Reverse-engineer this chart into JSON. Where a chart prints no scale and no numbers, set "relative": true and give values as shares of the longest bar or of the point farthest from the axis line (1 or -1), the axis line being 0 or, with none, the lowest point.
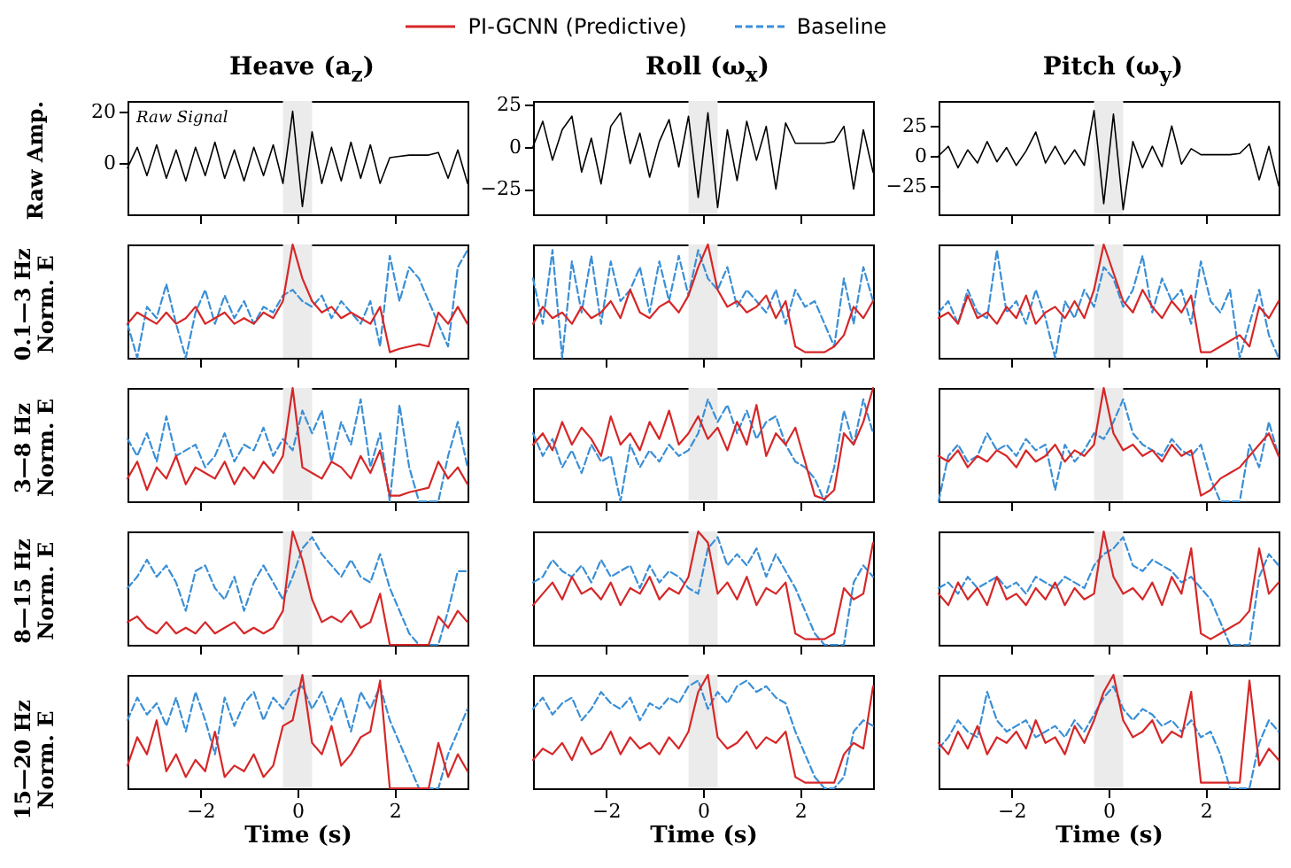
{
  "chart_data": [
    {
      "type": "line",
      "title": "Heave (a$_{z}$)",
      "ylabel": "Raw Amp.",
      "annotations": [
        "Raw Signal"
      ],
      "x": [
        -3.5,
        -3.3,
        -3.1,
        -2.9,
        -2.7,
        -2.5,
        -2.3,
        -2.1,
        -1.9,
        -1.7,
        -1.5,
        -1.3,
        -1.1,
        -0.9,
        -0.7,
        -0.5,
        -0.3,
        -0.1,
        0.1,
        0.3,
        0.5,
        0.7,
        0.9,
        1.1,
        1.3,
        1.5,
        1.7,
        1.9,
        2.1,
        2.3,
        2.5,
        2.7,
        2.9,
        3.1,
        3.3,
        3.5
      ],
      "xlim": [
        -3.5,
        3.5
      ],
      "xticks": [
        -2,
        0,
        2
      ],
      "ylim": [
        -20,
        24
      ],
      "yticks": [
        0,
        20
      ],
      "tick_labels": "y",
      "bands": [
        {
          "axis": "x",
          "from": -0.3,
          "to": 0.3,
          "color": "#ebebeb"
        }
      ],
      "series": [
        {
          "color": "#000000",
          "values": [
            -2,
            6,
            -5,
            7,
            -6,
            5,
            -7,
            6,
            -5,
            8,
            -6,
            5,
            -7,
            6,
            -5,
            7,
            -8,
            20,
            -17,
            12,
            -8,
            6,
            -7,
            8,
            -6,
            7,
            -8,
            2,
            2.5,
            3,
            3,
            3,
            4,
            -6,
            5,
            -8
          ]
        }
      ]
    },
    {
      "type": "line",
      "title": "Roll (ω$_{x}$)",
      "x": [
        -3.5,
        -3.3,
        -3.1,
        -2.9,
        -2.7,
        -2.5,
        -2.3,
        -2.1,
        -1.9,
        -1.7,
        -1.5,
        -1.3,
        -1.1,
        -0.9,
        -0.7,
        -0.5,
        -0.3,
        -0.1,
        0.1,
        0.3,
        0.5,
        0.7,
        0.9,
        1.1,
        1.3,
        1.5,
        1.7,
        1.9,
        2.1,
        2.3,
        2.5,
        2.7,
        2.9,
        3.1,
        3.3,
        3.5
      ],
      "xlim": [
        -3.5,
        3.5
      ],
      "xticks": [
        -2,
        0,
        2
      ],
      "ylim": [
        -40,
        27
      ],
      "yticks": [
        -25,
        0,
        25
      ],
      "tick_labels": "y",
      "bands": [
        {
          "axis": "x",
          "from": -0.3,
          "to": 0.3,
          "color": "#ebebeb"
        }
      ],
      "series": [
        {
          "color": "#000000",
          "values": [
            0,
            15,
            -8,
            10,
            18,
            -15,
            5,
            -22,
            12,
            20,
            -10,
            8,
            -18,
            3,
            16,
            -12,
            18,
            -30,
            20,
            -36,
            10,
            -20,
            15,
            -8,
            12,
            -25,
            14,
            2,
            2,
            2,
            2,
            3,
            12,
            -25,
            10,
            -15
          ]
        }
      ]
    },
    {
      "type": "line",
      "title": "Pitch (ω$_{y}$)",
      "x": [
        -3.5,
        -3.3,
        -3.1,
        -2.9,
        -2.7,
        -2.5,
        -2.3,
        -2.1,
        -1.9,
        -1.7,
        -1.5,
        -1.3,
        -1.1,
        -0.9,
        -0.7,
        -0.5,
        -0.3,
        -0.1,
        0.1,
        0.3,
        0.5,
        0.7,
        0.9,
        1.1,
        1.3,
        1.5,
        1.7,
        1.9,
        2.1,
        2.3,
        2.5,
        2.7,
        2.9,
        3.1,
        3.3,
        3.5
      ],
      "xlim": [
        -3.5,
        3.5
      ],
      "xticks": [
        -2,
        0,
        2
      ],
      "ylim": [
        -49,
        46
      ],
      "yticks": [
        -25,
        0,
        25
      ],
      "tick_labels": "y",
      "bands": [
        {
          "axis": "x",
          "from": -0.3,
          "to": 0.3,
          "color": "#ebebeb"
        }
      ],
      "series": [
        {
          "color": "#000000",
          "values": [
            0,
            8,
            -10,
            5,
            -6,
            12,
            -5,
            7,
            -8,
            4,
            20,
            -6,
            8,
            -7,
            5,
            -8,
            38,
            -40,
            35,
            -45,
            12,
            -10,
            8,
            -9,
            25,
            -7,
            6,
            1,
            1,
            1,
            1,
            2,
            10,
            -20,
            8,
            -25
          ]
        }
      ]
    },
    {
      "type": "line",
      "ylabel": "0.1—3 Hz\nNorm. E",
      "relative": true,
      "legend": "top",
      "x": [
        -3.5,
        -3.3,
        -3.1,
        -2.9,
        -2.7,
        -2.5,
        -2.3,
        -2.1,
        -1.9,
        -1.7,
        -1.5,
        -1.3,
        -1.1,
        -0.9,
        -0.7,
        -0.5,
        -0.3,
        -0.1,
        0.1,
        0.3,
        0.5,
        0.7,
        0.9,
        1.1,
        1.3,
        1.5,
        1.7,
        1.9,
        2.1,
        2.3,
        2.5,
        2.7,
        2.9,
        3.1,
        3.3,
        3.5
      ],
      "xlim": [
        -3.5,
        3.5
      ],
      "xticks": [
        -2,
        0,
        2
      ],
      "tick_labels": false,
      "bands": [
        {
          "axis": "x",
          "from": -0.3,
          "to": 0.3,
          "color": "#ebebeb"
        }
      ],
      "series": [
        {
          "name": "PI-GCNN (Predictive)",
          "color": "#d62728",
          "values": [
            0.3,
            0.4,
            0.35,
            0.3,
            0.4,
            0.3,
            0.35,
            0.45,
            0.3,
            0.35,
            0.4,
            0.3,
            0.35,
            0.3,
            0.4,
            0.35,
            0.5,
            1.0,
            0.7,
            0.5,
            0.4,
            0.45,
            0.35,
            0.4,
            0.35,
            0.3,
            0.45,
            0.05,
            0.08,
            0.1,
            0.12,
            0.1,
            0.4,
            0.3,
            0.45,
            0.3
          ]
        },
        {
          "name": "Baseline",
          "color": "#3a8fd6",
          "line_style": "dashed",
          "values": [
            0.3,
            0.0,
            0.45,
            0.35,
            0.65,
            0.3,
            0.0,
            0.4,
            0.6,
            0.3,
            0.55,
            0.35,
            0.5,
            0.3,
            0.45,
            0.4,
            0.55,
            0.6,
            0.5,
            0.45,
            0.55,
            0.35,
            0.5,
            0.4,
            0.3,
            0.5,
            0.1,
            0.9,
            0.5,
            0.8,
            0.7,
            0.5,
            0.3,
            0.1,
            0.8,
            0.95
          ]
        }
      ]
    },
    {
      "type": "line",
      "relative": true,
      "x": [
        -3.5,
        -3.3,
        -3.1,
        -2.9,
        -2.7,
        -2.5,
        -2.3,
        -2.1,
        -1.9,
        -1.7,
        -1.5,
        -1.3,
        -1.1,
        -0.9,
        -0.7,
        -0.5,
        -0.3,
        -0.1,
        0.1,
        0.3,
        0.5,
        0.7,
        0.9,
        1.1,
        1.3,
        1.5,
        1.7,
        1.9,
        2.1,
        2.3,
        2.5,
        2.7,
        2.9,
        3.1,
        3.3,
        3.5
      ],
      "xlim": [
        -3.5,
        3.5
      ],
      "xticks": [
        -2,
        0,
        2
      ],
      "tick_labels": false,
      "bands": [
        {
          "axis": "x",
          "from": -0.3,
          "to": 0.3,
          "color": "#ebebeb"
        }
      ],
      "series": [
        {
          "color": "#d62728",
          "values": [
            0.3,
            0.45,
            0.35,
            0.4,
            0.3,
            0.45,
            0.35,
            0.4,
            0.5,
            0.35,
            0.6,
            0.4,
            0.35,
            0.45,
            0.5,
            0.4,
            0.55,
            0.8,
            1.0,
            0.6,
            0.45,
            0.5,
            0.4,
            0.45,
            0.55,
            0.35,
            0.5,
            0.1,
            0.05,
            0.05,
            0.05,
            0.1,
            0.2,
            0.45,
            0.35,
            0.5
          ]
        },
        {
          "color": "#3a8fd6",
          "line_style": "dashed",
          "values": [
            0.7,
            0.3,
            0.95,
            0.0,
            0.85,
            0.4,
            0.9,
            0.3,
            0.85,
            0.5,
            0.6,
            0.8,
            0.4,
            0.85,
            0.5,
            0.9,
            0.55,
            0.95,
            0.7,
            0.6,
            0.8,
            0.45,
            0.6,
            0.5,
            0.4,
            0.6,
            0.3,
            0.6,
            0.45,
            0.5,
            0.3,
            0.1,
            0.7,
            0.3,
            0.8,
            0.5
          ]
        }
      ]
    },
    {
      "type": "line",
      "relative": true,
      "x": [
        -3.5,
        -3.3,
        -3.1,
        -2.9,
        -2.7,
        -2.5,
        -2.3,
        -2.1,
        -1.9,
        -1.7,
        -1.5,
        -1.3,
        -1.1,
        -0.9,
        -0.7,
        -0.5,
        -0.3,
        -0.1,
        0.1,
        0.3,
        0.5,
        0.7,
        0.9,
        1.1,
        1.3,
        1.5,
        1.7,
        1.9,
        2.1,
        2.3,
        2.5,
        2.7,
        2.9,
        3.1,
        3.3,
        3.5
      ],
      "xlim": [
        -3.5,
        3.5
      ],
      "xticks": [
        -2,
        0,
        2
      ],
      "tick_labels": false,
      "bands": [
        {
          "axis": "x",
          "from": -0.3,
          "to": 0.3,
          "color": "#ebebeb"
        }
      ],
      "series": [
        {
          "color": "#d62728",
          "values": [
            0.35,
            0.4,
            0.3,
            0.55,
            0.35,
            0.4,
            0.3,
            0.45,
            0.35,
            0.55,
            0.3,
            0.4,
            0.45,
            0.35,
            0.5,
            0.35,
            0.6,
            1.0,
            0.75,
            0.5,
            0.4,
            0.6,
            0.45,
            0.35,
            0.5,
            0.4,
            0.55,
            0.05,
            0.05,
            0.1,
            0.15,
            0.2,
            0.1,
            0.45,
            0.35,
            0.5
          ]
        },
        {
          "color": "#3a8fd6",
          "line_style": "dashed",
          "values": [
            0.4,
            0.5,
            0.3,
            0.6,
            0.4,
            0.35,
            0.95,
            0.4,
            0.5,
            0.3,
            0.6,
            0.35,
            0.0,
            0.5,
            0.35,
            0.6,
            0.45,
            0.8,
            0.7,
            0.45,
            0.6,
            0.9,
            0.4,
            0.7,
            0.5,
            0.6,
            0.3,
            0.85,
            0.5,
            0.4,
            0.6,
            0.0,
            0.3,
            0.6,
            0.2,
            0.0
          ]
        }
      ]
    },
    {
      "type": "line",
      "ylabel": "3—8 Hz\nNorm. E",
      "relative": true,
      "x": [
        -3.5,
        -3.3,
        -3.1,
        -2.9,
        -2.7,
        -2.5,
        -2.3,
        -2.1,
        -1.9,
        -1.7,
        -1.5,
        -1.3,
        -1.1,
        -0.9,
        -0.7,
        -0.5,
        -0.3,
        -0.1,
        0.1,
        0.3,
        0.5,
        0.7,
        0.9,
        1.1,
        1.3,
        1.5,
        1.7,
        1.9,
        2.1,
        2.3,
        2.5,
        2.7,
        2.9,
        3.1,
        3.3,
        3.5
      ],
      "xlim": [
        -3.5,
        3.5
      ],
      "xticks": [
        -2,
        0,
        2
      ],
      "tick_labels": false,
      "bands": [
        {
          "axis": "x",
          "from": -0.3,
          "to": 0.3,
          "color": "#ebebeb"
        }
      ],
      "series": [
        {
          "color": "#d62728",
          "values": [
            0.2,
            0.35,
            0.1,
            0.3,
            0.2,
            0.4,
            0.15,
            0.3,
            0.25,
            0.2,
            0.35,
            0.15,
            0.3,
            0.2,
            0.35,
            0.25,
            0.4,
            1.0,
            0.3,
            0.25,
            0.2,
            0.35,
            0.3,
            0.2,
            0.4,
            0.25,
            0.45,
            0.05,
            0.05,
            0.08,
            0.1,
            0.12,
            0.35,
            0.2,
            0.3,
            0.15
          ]
        },
        {
          "color": "#3a8fd6",
          "line_style": "dashed",
          "values": [
            0.55,
            0.4,
            0.6,
            0.35,
            0.75,
            0.4,
            0.45,
            0.5,
            0.3,
            0.4,
            0.6,
            0.35,
            0.5,
            0.45,
            0.65,
            0.4,
            0.55,
            0.45,
            0.8,
            0.6,
            0.8,
            0.35,
            0.7,
            0.5,
            0.9,
            0.3,
            0.6,
            0.0,
            0.85,
            0.3,
            0.0,
            0.0,
            0.0,
            0.4,
            0.7,
            0.3
          ]
        }
      ]
    },
    {
      "type": "line",
      "relative": true,
      "x": [
        -3.5,
        -3.3,
        -3.1,
        -2.9,
        -2.7,
        -2.5,
        -2.3,
        -2.1,
        -1.9,
        -1.7,
        -1.5,
        -1.3,
        -1.1,
        -0.9,
        -0.7,
        -0.5,
        -0.3,
        -0.1,
        0.1,
        0.3,
        0.5,
        0.7,
        0.9,
        1.1,
        1.3,
        1.5,
        1.7,
        1.9,
        2.1,
        2.3,
        2.5,
        2.7,
        2.9,
        3.1,
        3.3,
        3.5
      ],
      "xlim": [
        -3.5,
        3.5
      ],
      "xticks": [
        -2,
        0,
        2
      ],
      "tick_labels": false,
      "bands": [
        {
          "axis": "x",
          "from": -0.3,
          "to": 0.3,
          "color": "#ebebeb"
        }
      ],
      "series": [
        {
          "color": "#d62728",
          "values": [
            0.5,
            0.6,
            0.45,
            0.7,
            0.5,
            0.65,
            0.55,
            0.4,
            0.75,
            0.5,
            0.6,
            0.45,
            0.7,
            0.55,
            0.8,
            0.5,
            0.6,
            0.75,
            0.55,
            0.65,
            0.45,
            0.7,
            0.5,
            0.85,
            0.4,
            0.6,
            0.5,
            0.65,
            0.35,
            0.05,
            0.02,
            0.1,
            0.6,
            0.5,
            0.7,
            1.0
          ]
        },
        {
          "color": "#3a8fd6",
          "line_style": "dashed",
          "values": [
            0.6,
            0.4,
            0.55,
            0.3,
            0.45,
            0.25,
            0.5,
            0.35,
            0.4,
            0.0,
            0.5,
            0.3,
            0.45,
            0.35,
            0.5,
            0.4,
            0.45,
            0.6,
            0.9,
            0.7,
            0.85,
            0.6,
            0.8,
            0.55,
            0.7,
            0.75,
            0.5,
            0.35,
            0.3,
            0.2,
            0.0,
            0.3,
            0.8,
            0.5,
            0.9,
            0.6
          ]
        }
      ]
    },
    {
      "type": "line",
      "relative": true,
      "x": [
        -3.5,
        -3.3,
        -3.1,
        -2.9,
        -2.7,
        -2.5,
        -2.3,
        -2.1,
        -1.9,
        -1.7,
        -1.5,
        -1.3,
        -1.1,
        -0.9,
        -0.7,
        -0.5,
        -0.3,
        -0.1,
        0.1,
        0.3,
        0.5,
        0.7,
        0.9,
        1.1,
        1.3,
        1.5,
        1.7,
        1.9,
        2.1,
        2.3,
        2.5,
        2.7,
        2.9,
        3.1,
        3.3,
        3.5
      ],
      "xlim": [
        -3.5,
        3.5
      ],
      "xticks": [
        -2,
        0,
        2
      ],
      "tick_labels": false,
      "bands": [
        {
          "axis": "x",
          "from": -0.3,
          "to": 0.3,
          "color": "#ebebeb"
        }
      ],
      "series": [
        {
          "color": "#d62728",
          "values": [
            0.4,
            0.35,
            0.45,
            0.3,
            0.4,
            0.35,
            0.45,
            0.4,
            0.3,
            0.45,
            0.35,
            0.4,
            0.5,
            0.35,
            0.45,
            0.4,
            0.5,
            1.0,
            0.6,
            0.45,
            0.5,
            0.4,
            0.45,
            0.35,
            0.5,
            0.4,
            0.45,
            0.05,
            0.1,
            0.2,
            0.25,
            0.3,
            0.4,
            0.5,
            0.6,
            0.4
          ]
        },
        {
          "color": "#3a8fd6",
          "line_style": "dashed",
          "values": [
            0.0,
            0.4,
            0.5,
            0.35,
            0.4,
            0.6,
            0.45,
            0.5,
            0.4,
            0.55,
            0.45,
            0.5,
            0.1,
            0.5,
            0.35,
            0.45,
            0.6,
            0.55,
            0.7,
            0.9,
            0.6,
            0.5,
            0.45,
            0.4,
            0.55,
            0.45,
            0.4,
            0.5,
            0.2,
            0.0,
            0.0,
            0.0,
            0.5,
            0.3,
            0.7,
            0.4
          ]
        }
      ]
    },
    {
      "type": "line",
      "ylabel": "8—15 Hz\nNorm. E",
      "relative": true,
      "x": [
        -3.5,
        -3.3,
        -3.1,
        -2.9,
        -2.7,
        -2.5,
        -2.3,
        -2.1,
        -1.9,
        -1.7,
        -1.5,
        -1.3,
        -1.1,
        -0.9,
        -0.7,
        -0.5,
        -0.3,
        -0.1,
        0.1,
        0.3,
        0.5,
        0.7,
        0.9,
        1.1,
        1.3,
        1.5,
        1.7,
        1.9,
        2.1,
        2.3,
        2.5,
        2.7,
        2.9,
        3.1,
        3.3,
        3.5
      ],
      "xlim": [
        -3.5,
        3.5
      ],
      "xticks": [
        -2,
        0,
        2
      ],
      "tick_labels": false,
      "bands": [
        {
          "axis": "x",
          "from": -0.3,
          "to": 0.3,
          "color": "#ebebeb"
        }
      ],
      "series": [
        {
          "color": "#d62728",
          "values": [
            0.2,
            0.25,
            0.15,
            0.1,
            0.2,
            0.1,
            0.15,
            0.1,
            0.2,
            0.1,
            0.15,
            0.2,
            0.1,
            0.15,
            0.1,
            0.15,
            0.3,
            1.0,
            0.75,
            0.4,
            0.2,
            0.25,
            0.2,
            0.3,
            0.15,
            0.2,
            0.45,
            0.0,
            0.0,
            0.0,
            0.0,
            0.0,
            0.25,
            0.15,
            0.3,
            0.2
          ]
        },
        {
          "color": "#3a8fd6",
          "line_style": "dashed",
          "values": [
            0.5,
            0.6,
            0.75,
            0.6,
            0.7,
            0.55,
            0.3,
            0.65,
            0.7,
            0.5,
            0.4,
            0.6,
            0.3,
            0.55,
            0.7,
            0.55,
            0.4,
            0.6,
            0.85,
            0.95,
            0.8,
            0.7,
            0.6,
            0.75,
            0.6,
            0.55,
            0.8,
            0.5,
            0.3,
            0.1,
            0.0,
            0.0,
            0.0,
            0.3,
            0.65,
            0.65
          ]
        }
      ]
    },
    {
      "type": "line",
      "relative": true,
      "x": [
        -3.5,
        -3.3,
        -3.1,
        -2.9,
        -2.7,
        -2.5,
        -2.3,
        -2.1,
        -1.9,
        -1.7,
        -1.5,
        -1.3,
        -1.1,
        -0.9,
        -0.7,
        -0.5,
        -0.3,
        -0.1,
        0.1,
        0.3,
        0.5,
        0.7,
        0.9,
        1.1,
        1.3,
        1.5,
        1.7,
        1.9,
        2.1,
        2.3,
        2.5,
        2.7,
        2.9,
        3.1,
        3.3,
        3.5
      ],
      "xlim": [
        -3.5,
        3.5
      ],
      "xticks": [
        -2,
        0,
        2
      ],
      "tick_labels": false,
      "bands": [
        {
          "axis": "x",
          "from": -0.3,
          "to": 0.3,
          "color": "#ebebeb"
        }
      ],
      "series": [
        {
          "color": "#d62728",
          "values": [
            0.35,
            0.45,
            0.55,
            0.4,
            0.6,
            0.45,
            0.5,
            0.4,
            0.55,
            0.35,
            0.5,
            0.45,
            0.6,
            0.4,
            0.5,
            0.45,
            0.6,
            1.0,
            0.9,
            0.45,
            0.55,
            0.4,
            0.6,
            0.35,
            0.5,
            0.45,
            0.55,
            0.1,
            0.05,
            0.05,
            0.05,
            0.1,
            0.5,
            0.4,
            0.45,
            0.9
          ]
        },
        {
          "color": "#3a8fd6",
          "line_style": "dashed",
          "values": [
            0.55,
            0.6,
            0.75,
            0.65,
            0.6,
            0.7,
            0.55,
            0.75,
            0.6,
            0.65,
            0.7,
            0.5,
            0.7,
            0.55,
            0.65,
            0.6,
            0.5,
            0.45,
            0.85,
            0.95,
            0.7,
            0.8,
            0.7,
            0.85,
            0.6,
            0.8,
            0.65,
            0.5,
            0.3,
            0.1,
            0.0,
            0.0,
            0.0,
            0.55,
            0.7,
            0.6
          ]
        }
      ]
    },
    {
      "type": "line",
      "relative": true,
      "x": [
        -3.5,
        -3.3,
        -3.1,
        -2.9,
        -2.7,
        -2.5,
        -2.3,
        -2.1,
        -1.9,
        -1.7,
        -1.5,
        -1.3,
        -1.1,
        -0.9,
        -0.7,
        -0.5,
        -0.3,
        -0.1,
        0.1,
        0.3,
        0.5,
        0.7,
        0.9,
        1.1,
        1.3,
        1.5,
        1.7,
        1.9,
        2.1,
        2.3,
        2.5,
        2.7,
        2.9,
        3.1,
        3.3,
        3.5
      ],
      "xlim": [
        -3.5,
        3.5
      ],
      "xticks": [
        -2,
        0,
        2
      ],
      "tick_labels": false,
      "bands": [
        {
          "axis": "x",
          "from": -0.3,
          "to": 0.3,
          "color": "#ebebeb"
        }
      ],
      "series": [
        {
          "color": "#d62728",
          "values": [
            0.45,
            0.35,
            0.55,
            0.4,
            0.5,
            0.35,
            0.6,
            0.4,
            0.45,
            0.35,
            0.5,
            0.4,
            0.55,
            0.35,
            0.5,
            0.4,
            0.45,
            1.0,
            0.6,
            0.45,
            0.5,
            0.4,
            0.55,
            0.35,
            0.6,
            0.45,
            0.85,
            0.1,
            0.05,
            0.1,
            0.15,
            0.2,
            0.3,
            0.85,
            0.45,
            0.55
          ]
        },
        {
          "color": "#3a8fd6",
          "line_style": "dashed",
          "values": [
            0.5,
            0.55,
            0.45,
            0.6,
            0.5,
            0.55,
            0.6,
            0.5,
            0.55,
            0.45,
            0.6,
            0.55,
            0.5,
            0.6,
            0.55,
            0.5,
            0.7,
            0.8,
            0.85,
            0.95,
            0.7,
            0.65,
            0.75,
            0.7,
            0.65,
            0.55,
            0.6,
            0.5,
            0.4,
            0.2,
            0.0,
            0.0,
            0.0,
            0.6,
            0.8,
            0.7
          ]
        }
      ]
    },
    {
      "type": "line",
      "ylabel": "15—20 Hz\nNorm. E",
      "xlabel": "Time (s)",
      "relative": true,
      "x": [
        -3.5,
        -3.3,
        -3.1,
        -2.9,
        -2.7,
        -2.5,
        -2.3,
        -2.1,
        -1.9,
        -1.7,
        -1.5,
        -1.3,
        -1.1,
        -0.9,
        -0.7,
        -0.5,
        -0.3,
        -0.1,
        0.1,
        0.3,
        0.5,
        0.7,
        0.9,
        1.1,
        1.3,
        1.5,
        1.7,
        1.9,
        2.1,
        2.3,
        2.5,
        2.7,
        2.9,
        3.1,
        3.3,
        3.5
      ],
      "xlim": [
        -3.5,
        3.5
      ],
      "xticks": [
        -2,
        0,
        2
      ],
      "tick_labels": "x",
      "bands": [
        {
          "axis": "x",
          "from": -0.3,
          "to": 0.3,
          "color": "#ebebeb"
        }
      ],
      "series": [
        {
          "color": "#d62728",
          "values": [
            0.2,
            0.45,
            0.3,
            0.6,
            0.15,
            0.3,
            0.1,
            0.25,
            0.15,
            0.5,
            0.1,
            0.2,
            0.15,
            0.3,
            0.1,
            0.2,
            0.55,
            0.6,
            1.0,
            0.4,
            0.3,
            0.55,
            0.2,
            0.3,
            0.45,
            0.5,
            0.95,
            0.0,
            0.0,
            0.0,
            0.0,
            0.0,
            0.4,
            0.1,
            0.3,
            0.15
          ]
        },
        {
          "color": "#3a8fd6",
          "line_style": "dashed",
          "values": [
            0.6,
            0.8,
            0.65,
            0.75,
            0.55,
            0.8,
            0.5,
            0.85,
            0.6,
            0.3,
            0.8,
            0.55,
            0.75,
            0.85,
            0.6,
            0.8,
            0.7,
            0.85,
            0.9,
            0.7,
            0.85,
            0.6,
            0.8,
            0.5,
            0.85,
            0.7,
            0.9,
            0.6,
            0.4,
            0.2,
            0.0,
            0.0,
            0.0,
            0.3,
            0.5,
            0.7
          ]
        }
      ]
    },
    {
      "type": "line",
      "xlabel": "Time (s)",
      "relative": true,
      "x": [
        -3.5,
        -3.3,
        -3.1,
        -2.9,
        -2.7,
        -2.5,
        -2.3,
        -2.1,
        -1.9,
        -1.7,
        -1.5,
        -1.3,
        -1.1,
        -0.9,
        -0.7,
        -0.5,
        -0.3,
        -0.1,
        0.1,
        0.3,
        0.5,
        0.7,
        0.9,
        1.1,
        1.3,
        1.5,
        1.7,
        1.9,
        2.1,
        2.3,
        2.5,
        2.7,
        2.9,
        3.1,
        3.3,
        3.5
      ],
      "xlim": [
        -3.5,
        3.5
      ],
      "xticks": [
        -2,
        0,
        2
      ],
      "tick_labels": "x",
      "bands": [
        {
          "axis": "x",
          "from": -0.3,
          "to": 0.3,
          "color": "#ebebeb"
        }
      ],
      "series": [
        {
          "color": "#d62728",
          "values": [
            0.25,
            0.35,
            0.3,
            0.4,
            0.25,
            0.45,
            0.3,
            0.35,
            0.5,
            0.3,
            0.45,
            0.35,
            0.4,
            0.3,
            0.45,
            0.35,
            0.5,
            0.85,
            1.0,
            0.45,
            0.35,
            0.4,
            0.5,
            0.35,
            0.45,
            0.4,
            0.5,
            0.1,
            0.05,
            0.05,
            0.05,
            0.05,
            0.3,
            0.4,
            0.35,
            0.9
          ]
        },
        {
          "color": "#3a8fd6",
          "line_style": "dashed",
          "values": [
            0.7,
            0.8,
            0.65,
            0.75,
            0.8,
            0.6,
            0.7,
            0.85,
            0.75,
            0.7,
            0.8,
            0.6,
            0.75,
            0.7,
            0.8,
            0.75,
            0.9,
            0.95,
            0.7,
            0.85,
            0.75,
            0.9,
            0.95,
            0.85,
            0.9,
            0.8,
            0.75,
            0.5,
            0.3,
            0.1,
            0.0,
            0.0,
            0.1,
            0.5,
            0.6,
            0.55
          ]
        }
      ]
    },
    {
      "type": "line",
      "xlabel": "Time (s)",
      "relative": true,
      "x": [
        -3.5,
        -3.3,
        -3.1,
        -2.9,
        -2.7,
        -2.5,
        -2.3,
        -2.1,
        -1.9,
        -1.7,
        -1.5,
        -1.3,
        -1.1,
        -0.9,
        -0.7,
        -0.5,
        -0.3,
        -0.1,
        0.1,
        0.3,
        0.5,
        0.7,
        0.9,
        1.1,
        1.3,
        1.5,
        1.7,
        1.9,
        2.1,
        2.3,
        2.5,
        2.7,
        2.9,
        3.1,
        3.3,
        3.5
      ],
      "xlim": [
        -3.5,
        3.5
      ],
      "xticks": [
        -2,
        0,
        2
      ],
      "tick_labels": "x",
      "bands": [
        {
          "axis": "x",
          "from": -0.3,
          "to": 0.3,
          "color": "#ebebeb"
        }
      ],
      "series": [
        {
          "color": "#d62728",
          "values": [
            0.4,
            0.3,
            0.5,
            0.35,
            0.55,
            0.3,
            0.45,
            0.4,
            0.5,
            0.35,
            0.6,
            0.4,
            0.45,
            0.3,
            0.55,
            0.4,
            0.6,
            0.85,
            1.0,
            0.6,
            0.45,
            0.5,
            0.6,
            0.4,
            0.5,
            0.45,
            0.85,
            0.05,
            0.05,
            0.05,
            0.05,
            0.05,
            0.95,
            0.2,
            0.35,
            0.25
          ]
        },
        {
          "color": "#3a8fd6",
          "line_style": "dashed",
          "values": [
            0.35,
            0.45,
            0.6,
            0.5,
            0.45,
            0.85,
            0.6,
            0.5,
            0.55,
            0.6,
            0.45,
            0.5,
            0.55,
            0.45,
            0.6,
            0.5,
            0.65,
            0.8,
            0.9,
            0.7,
            0.6,
            0.7,
            0.65,
            0.55,
            0.6,
            0.5,
            0.6,
            0.45,
            0.5,
            0.3,
            0.0,
            0.0,
            0.0,
            0.4,
            0.6,
            0.5
          ]
        }
      ]
    }
  ]
}
